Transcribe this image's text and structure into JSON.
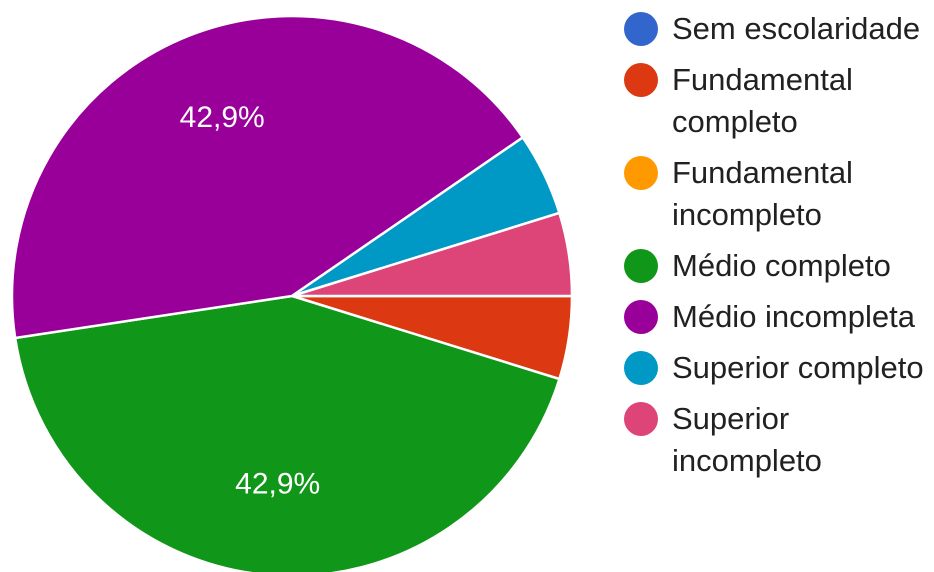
{
  "chart_data": {
    "type": "pie",
    "categories": [
      "Sem escolaridade",
      "Fundamental completo",
      "Fundamental incompleto",
      "Médio completo",
      "Médio incompleta",
      "Superior completo",
      "Superior incompleto"
    ],
    "legend_lines": [
      "Sem escolaridade",
      "Fundamental\ncompleto",
      "Fundamental\nincompleto",
      "Médio completo",
      "Médio incompleta",
      "Superior completo",
      "Superior\nincompleto"
    ],
    "values": [
      0,
      4.8,
      0,
      42.9,
      42.9,
      4.8,
      4.8
    ],
    "colors": [
      "#3366cc",
      "#dc3912",
      "#ff9900",
      "#109618",
      "#990099",
      "#0099c6",
      "#dd4477"
    ],
    "data_labels": [
      "",
      "",
      "",
      "42,9%",
      "42,9%",
      "",
      ""
    ],
    "title": "",
    "legend_position": "right"
  }
}
